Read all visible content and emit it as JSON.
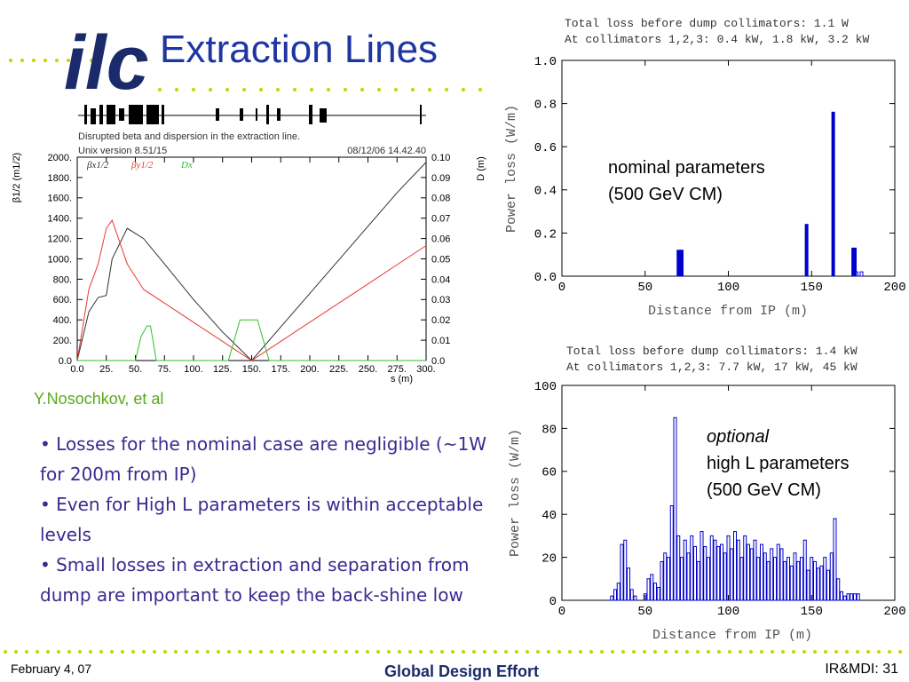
{
  "slide": {
    "logo": "ilc",
    "title": "Extraction Lines",
    "credit": "Y.Nosochkov, et al",
    "bullets": [
      "• Losses for the nominal case are negligible (~1W for 200m from IP)",
      "• Even for High L parameters is within acceptable levels",
      "• Small losses in extraction and separation from dump are important to keep the back-shine low"
    ],
    "footer": {
      "date": "February 4, 07",
      "center": "Global Design Effort",
      "page": "IR&MDI: 31"
    }
  },
  "chart_data": [
    {
      "type": "bar",
      "title": "Total loss before dump collimators: 1.1 W",
      "subtitle": "At collimators 1,2,3: 0.4 kW, 1.8 kW, 3.2 kW",
      "x_label": "Distance from IP (m)",
      "y_label": "Power loss (W/m)",
      "annotations": [
        "nominal parameters",
        "(500 GeV CM)"
      ],
      "color": "#0000cc",
      "x": [
        70,
        71,
        72,
        147,
        163,
        175,
        176,
        177,
        180
      ],
      "values": [
        0.12,
        0.12,
        0.12,
        0.24,
        0.76,
        0.13,
        0.13,
        0.02,
        0.02
      ],
      "xlim": [
        0,
        200
      ],
      "xticks": [
        0,
        50,
        100,
        150,
        200
      ],
      "ylim": [
        0,
        1
      ],
      "yticks": [
        {
          "value": 0,
          "label": "0.0"
        },
        0.2,
        0.4,
        0.6,
        0.8,
        {
          "value": 1,
          "label": "1.0"
        }
      ]
    },
    {
      "type": "bar",
      "title": "Total loss before dump collimators: 1.4 kW",
      "subtitle": "At collimators 1,2,3: 7.7 kW, 17 kW, 45 kW",
      "x_label": "Distance from IP (m)",
      "y_label": "Power loss (W/m)",
      "annotations": [
        "optional",
        "high L parameters",
        "(500 GeV CM)"
      ],
      "color": "#0000cc",
      "x": [
        30,
        32,
        34,
        36,
        38,
        40,
        42,
        44,
        46,
        48,
        50,
        52,
        54,
        56,
        58,
        60,
        62,
        64,
        66,
        68,
        70,
        72,
        74,
        76,
        78,
        80,
        82,
        84,
        86,
        88,
        90,
        92,
        94,
        96,
        98,
        100,
        102,
        104,
        106,
        108,
        110,
        112,
        114,
        116,
        118,
        120,
        122,
        124,
        126,
        128,
        130,
        132,
        134,
        136,
        138,
        140,
        142,
        144,
        146,
        148,
        150,
        152,
        154,
        156,
        158,
        160,
        162,
        164,
        166,
        168,
        170,
        172,
        174,
        176,
        178
      ],
      "values": [
        2,
        5,
        8,
        26,
        28,
        15,
        5,
        2,
        0,
        0,
        3,
        10,
        12,
        8,
        6,
        18,
        22,
        20,
        44,
        85,
        30,
        20,
        28,
        22,
        30,
        25,
        18,
        32,
        25,
        20,
        30,
        28,
        25,
        26,
        22,
        30,
        24,
        32,
        28,
        20,
        30,
        26,
        24,
        28,
        20,
        26,
        22,
        18,
        24,
        20,
        26,
        24,
        18,
        20,
        16,
        22,
        18,
        20,
        28,
        14,
        20,
        18,
        15,
        16,
        20,
        14,
        22,
        38,
        10,
        4,
        2,
        3,
        3,
        3,
        3
      ],
      "xlim": [
        0,
        200
      ],
      "xticks": [
        0,
        50,
        100,
        150,
        200
      ],
      "ylim": [
        0,
        100
      ],
      "yticks": [
        0,
        20,
        40,
        60,
        80,
        100
      ]
    },
    {
      "type": "line",
      "title": "Disrupted beta and dispersion in the extraction line.",
      "subtitle": "Unix version 8.51/15",
      "timestamp": "08/12/06  14.42.40",
      "x_label": "s (m)",
      "y_label": "β1/2 (m1/2)",
      "y2_label": "D (m)",
      "series": [
        {
          "name": "βx1/2",
          "color": "#333333",
          "x": [
            0,
            10,
            18,
            25,
            30,
            43,
            57,
            75,
            100,
            125,
            150,
            175,
            200,
            225,
            250,
            275,
            300
          ],
          "values": [
            0,
            480,
            620,
            640,
            1000,
            1300,
            1200,
            950,
            600,
            280,
            0,
            330,
            660,
            990,
            1320,
            1650,
            1950
          ]
        },
        {
          "name": "βy1/2",
          "color": "#e8392f",
          "x": [
            0,
            10,
            18,
            25,
            30,
            43,
            57,
            75,
            100,
            125,
            150,
            175,
            200,
            225,
            250,
            275,
            300
          ],
          "values": [
            0,
            700,
            950,
            1300,
            1380,
            950,
            700,
            565,
            376,
            188,
            0,
            188,
            377,
            565,
            753,
            942,
            1130
          ]
        },
        {
          "name": "Dx",
          "color": "#2ec02e",
          "axis": "y2",
          "x": [
            0,
            50,
            55,
            60,
            63,
            68,
            130,
            140,
            155,
            165,
            300
          ],
          "values": [
            0,
            0,
            0.012,
            0.017,
            0.017,
            0,
            0,
            0.02,
            0.02,
            0,
            0
          ]
        }
      ],
      "xlim": [
        0,
        300
      ],
      "xticks": [
        {
          "value": 0,
          "label": "0.0"
        },
        {
          "value": 25,
          "label": "25."
        },
        {
          "value": 50,
          "label": "50."
        },
        {
          "value": 75,
          "label": "75."
        },
        {
          "value": 100,
          "label": "100."
        },
        {
          "value": 125,
          "label": "125."
        },
        {
          "value": 150,
          "label": "150."
        },
        {
          "value": 175,
          "label": "175."
        },
        {
          "value": 200,
          "label": "200."
        },
        {
          "value": 225,
          "label": "225."
        },
        {
          "value": 250,
          "label": "250."
        },
        {
          "value": 275,
          "label": "275."
        },
        {
          "value": 300,
          "label": "300."
        }
      ],
      "ylim": [
        0,
        2000
      ],
      "yticks": [
        {
          "value": 0,
          "label": "0.0"
        },
        {
          "value": 200,
          "label": "200."
        },
        {
          "value": 400,
          "label": "400."
        },
        {
          "value": 600,
          "label": "600."
        },
        {
          "value": 800,
          "label": "800."
        },
        {
          "value": 1000,
          "label": "1000."
        },
        {
          "value": 1200,
          "label": "1200."
        },
        {
          "value": 1400,
          "label": "1400."
        },
        {
          "value": 1600,
          "label": "1600."
        },
        {
          "value": 1800,
          "label": "1800."
        },
        {
          "value": 2000,
          "label": "2000."
        }
      ],
      "y2lim": [
        0,
        0.1
      ],
      "y2ticks": [
        {
          "value": 0,
          "label": "0.0"
        },
        0.01,
        0.02,
        0.03,
        0.04,
        0.05,
        0.06,
        0.07,
        0.08,
        0.09,
        {
          "value": 0.1,
          "label": "0.10"
        }
      ]
    }
  ]
}
